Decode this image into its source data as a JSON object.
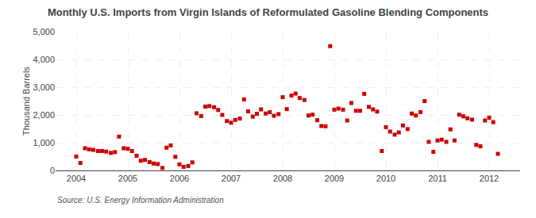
{
  "chart_data": {
    "type": "scatter",
    "title": "Monthly U.S. Imports from Virgin Islands of Reformulated Gasoline Blending Components",
    "ylabel": "Thousand Barrels",
    "source": "Source: U.S. Energy Information Administration",
    "color": "#CC0000",
    "marker": "square",
    "grid": true,
    "xlim": [
      2003.6,
      2012.6
    ],
    "xticks": [
      2004,
      2005,
      2006,
      2007,
      2008,
      2009,
      2010,
      2011,
      2012
    ],
    "ylim": [
      0,
      5000
    ],
    "yticks": [
      0,
      {
        "value": 1000,
        "label": "1,000"
      },
      {
        "value": 2000,
        "label": "2,000"
      },
      {
        "value": 3000,
        "label": "3,000"
      },
      {
        "value": 4000,
        "label": "4,000"
      },
      {
        "value": 5000,
        "label": "5,000"
      }
    ],
    "x": [
      2004.0,
      2004.08,
      2004.17,
      2004.25,
      2004.33,
      2004.42,
      2004.5,
      2004.58,
      2004.67,
      2004.75,
      2004.83,
      2004.92,
      2005.0,
      2005.08,
      2005.17,
      2005.25,
      2005.33,
      2005.42,
      2005.5,
      2005.58,
      2005.67,
      2005.75,
      2005.83,
      2005.92,
      2006.0,
      2006.08,
      2006.17,
      2006.25,
      2006.33,
      2006.42,
      2006.5,
      2006.58,
      2006.67,
      2006.75,
      2006.83,
      2006.92,
      2007.0,
      2007.08,
      2007.17,
      2007.25,
      2007.33,
      2007.42,
      2007.5,
      2007.58,
      2007.67,
      2007.75,
      2007.83,
      2007.92,
      2008.0,
      2008.08,
      2008.17,
      2008.25,
      2008.33,
      2008.42,
      2008.5,
      2008.58,
      2008.67,
      2008.75,
      2008.83,
      2008.92,
      2009.0,
      2009.08,
      2009.17,
      2009.25,
      2009.33,
      2009.42,
      2009.5,
      2009.58,
      2009.67,
      2009.75,
      2009.83,
      2009.92,
      2010.0,
      2010.08,
      2010.17,
      2010.25,
      2010.33,
      2010.42,
      2010.5,
      2010.58,
      2010.67,
      2010.75,
      2010.83,
      2010.92,
      2011.0,
      2011.08,
      2011.17,
      2011.25,
      2011.33,
      2011.42,
      2011.5,
      2011.58,
      2011.67,
      2011.75,
      2011.83,
      2011.92,
      2012.0,
      2012.08,
      2012.17
    ],
    "values": [
      500,
      270,
      800,
      760,
      740,
      700,
      700,
      680,
      630,
      660,
      1220,
      800,
      780,
      700,
      530,
      350,
      380,
      300,
      250,
      230,
      90,
      820,
      900,
      490,
      220,
      130,
      160,
      290,
      2060,
      1960,
      2300,
      2320,
      2280,
      2180,
      2000,
      1780,
      1720,
      1820,
      1870,
      2560,
      2130,
      1940,
      2040,
      2200,
      2050,
      2100,
      1970,
      2030,
      2640,
      2210,
      2700,
      2770,
      2610,
      2540,
      1980,
      2010,
      1810,
      1600,
      1590,
      4480,
      2190,
      2230,
      2190,
      1800,
      2430,
      2150,
      2150,
      2760,
      2290,
      2200,
      2120,
      700,
      1560,
      1400,
      1290,
      1370,
      1620,
      1490,
      2050,
      1980,
      2100,
      2500,
      1030,
      670,
      1080,
      1110,
      1030,
      1480,
      1080,
      2010,
      1950,
      1880,
      1830,
      920,
      870,
      1800,
      1900,
      1740,
      600
    ]
  }
}
